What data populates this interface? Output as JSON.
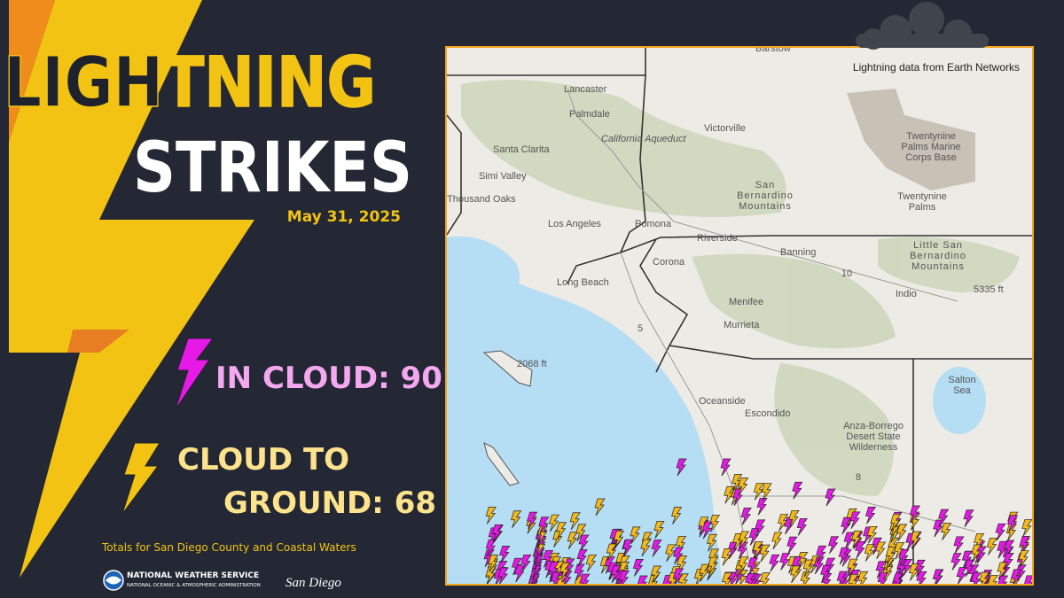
{
  "title_line1": "LIGHTNING",
  "title_line2": "STRIKES",
  "date": "May 31, 2025",
  "in_cloud": {
    "label": "IN CLOUD:",
    "count": 90
  },
  "cloud_to_ground": {
    "label_line1": "CLOUD TO",
    "label_line2": "GROUND:",
    "count": 68
  },
  "footnote": "Totals for San Diego County and Coastal Waters",
  "logo": {
    "name": "NATIONAL WEATHER SERVICE",
    "subname": "NATIONAL OCEANIC & ATMOSPHERIC ADMINISTRATION",
    "office": "San Diego"
  },
  "map": {
    "credit": "Lightning data from Earth Networks",
    "labels": [
      {
        "lines": [
          "Barstow"
        ]
      },
      {
        "lines": [
          "Lancaster"
        ]
      },
      {
        "lines": [
          "Palmdale"
        ]
      },
      {
        "lines": [
          "California Aqueduct"
        ]
      },
      {
        "lines": [
          "Victorville"
        ]
      },
      {
        "lines": [
          "Santa Clarita"
        ]
      },
      {
        "lines": [
          "Simi Valley"
        ]
      },
      {
        "lines": [
          "Thousand Oaks"
        ]
      },
      {
        "lines": [
          "Twentynine",
          "Palms Marine",
          "Corps Base"
        ]
      },
      {
        "lines": [
          "San",
          "Bernardino",
          "Mountains"
        ]
      },
      {
        "lines": [
          "Twentynine",
          "Palms"
        ]
      },
      {
        "lines": [
          "Los Angeles"
        ]
      },
      {
        "lines": [
          "Pomona"
        ]
      },
      {
        "lines": [
          "Riverside"
        ]
      },
      {
        "lines": [
          "Banning"
        ]
      },
      {
        "lines": [
          "Little San",
          "Bernardino",
          "Mountains"
        ]
      },
      {
        "lines": [
          "Corona"
        ]
      },
      {
        "lines": [
          "10"
        ]
      },
      {
        "lines": [
          "Indio"
        ]
      },
      {
        "lines": [
          "5335 ft"
        ]
      },
      {
        "lines": [
          "Long Beach"
        ]
      },
      {
        "lines": [
          "Menifee"
        ]
      },
      {
        "lines": [
          "Murrieta"
        ]
      },
      {
        "lines": [
          "5"
        ]
      },
      {
        "lines": [
          "2068 ft"
        ]
      },
      {
        "lines": [
          "Salton",
          "Sea"
        ]
      },
      {
        "lines": [
          "Oceanside"
        ]
      },
      {
        "lines": [
          "Escondido"
        ]
      },
      {
        "lines": [
          "Anza-Borrego",
          "Desert State",
          "Wilderness"
        ]
      },
      {
        "lines": [
          "8"
        ]
      }
    ]
  }
}
